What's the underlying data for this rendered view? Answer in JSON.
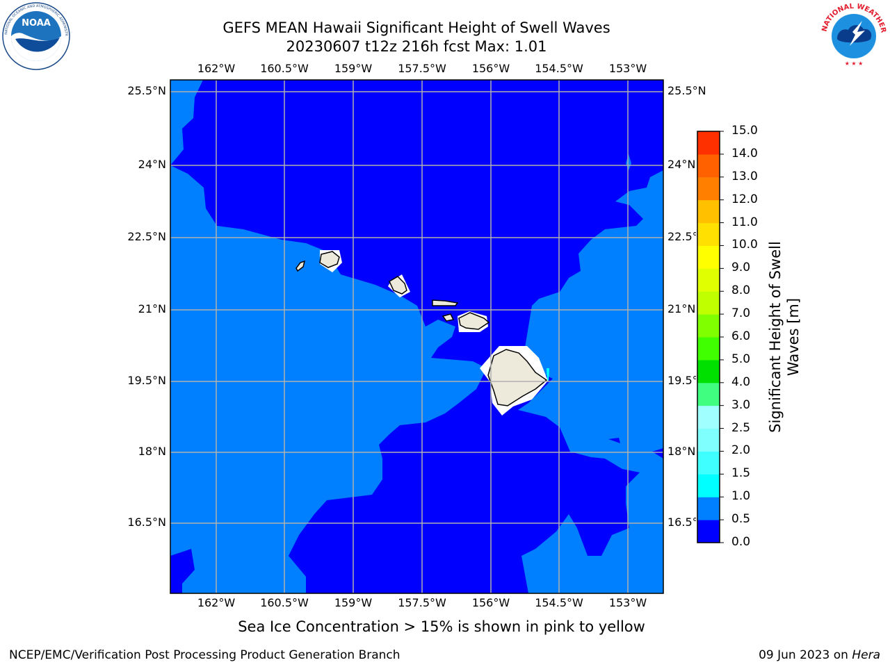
{
  "header": {
    "title_line1": "GEFS MEAN Hawaii Significant Height of Swell Waves",
    "title_line2": "20230607 t12z 216h fcst   Max: 1.01"
  },
  "logos": {
    "left": {
      "name": "NOAA",
      "ring_text": "NATIONAL OCEANIC AND ATMOSPHERIC ADMINISTRATION · U.S. DEPARTMENT OF COMMERCE"
    },
    "right": {
      "name": "NATIONAL WEATHER SERVICE"
    }
  },
  "map": {
    "lon_labels": [
      "162°W",
      "160.5°W",
      "159°W",
      "157.5°W",
      "156°W",
      "154.5°W",
      "153°W"
    ],
    "lat_labels": [
      "25.5°N",
      "24°N",
      "22.5°N",
      "21°N",
      "19.5°N",
      "18°N",
      "16.5°N"
    ],
    "colors": {
      "deep": "#0000ff",
      "shallow": "#0080ff",
      "cyan": "#00ffff",
      "land": "#eeeadb"
    },
    "grid": true
  },
  "colorbar": {
    "title": "Significant Height of Swell Waves [m]",
    "tick_labels": [
      "0.0",
      "0.5",
      "1.0",
      "1.5",
      "2.0",
      "2.5",
      "3.0",
      "4.0",
      "5.0",
      "6.0",
      "7.0",
      "8.0",
      "9.0",
      "10.0",
      "11.0",
      "12.0",
      "13.0",
      "14.0",
      "15.0"
    ],
    "colors": [
      "#0000ff",
      "#0080ff",
      "#00ffff",
      "#40ffff",
      "#80ffff",
      "#a0ffff",
      "#40ff80",
      "#00e000",
      "#40ff00",
      "#80ff00",
      "#c0ff00",
      "#e0ff00",
      "#ffff00",
      "#ffe000",
      "#ffc000",
      "#ff8000",
      "#ff6000",
      "#ff3000",
      "#ff0000"
    ]
  },
  "note": "Sea Ice Concentration > 15% is shown in pink to yellow",
  "footer": {
    "left": "NCEP/EMC/Verification Post Processing Product Generation Branch",
    "right_prefix": "09 Jun 2023 on ",
    "right_italic": "Hera"
  }
}
